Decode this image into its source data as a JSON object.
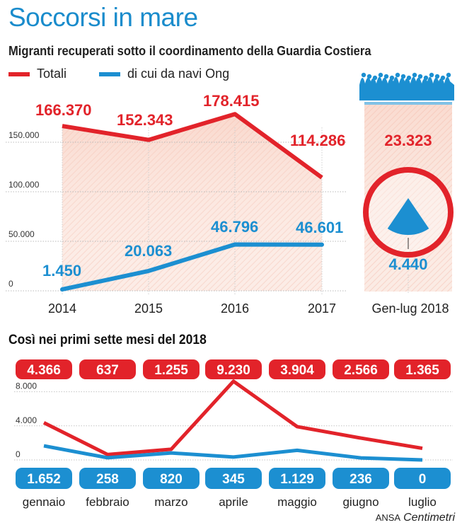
{
  "title": "Soccorsi in mare",
  "subtitle": "Migranti recuperati sotto il coordinamento della Guardia Costiera",
  "legend": {
    "total_label": "Totali",
    "ngo_label": "di cui da navi Ong"
  },
  "colors": {
    "red": "#e2232a",
    "blue": "#1c8fd1",
    "title": "#1a8ccc",
    "fill": "#f9d9cf"
  },
  "chart_data": [
    {
      "type": "line",
      "title": "Migranti recuperati sotto il coordinamento della Guardia Costiera",
      "categories": [
        "2014",
        "2015",
        "2016",
        "2017"
      ],
      "series": [
        {
          "name": "Totali",
          "values": [
            166370,
            152343,
            178415,
            114286
          ],
          "labels": [
            "166.370",
            "152.343",
            "178.415",
            "114.286"
          ]
        },
        {
          "name": "di cui da navi Ong",
          "values": [
            1450,
            20063,
            46796,
            46601
          ],
          "labels": [
            "1.450",
            "20.063",
            "46.796",
            "46.601"
          ]
        }
      ],
      "yticks": [
        0,
        50000,
        100000,
        150000
      ],
      "ytick_labels": [
        "0",
        "50.000",
        "100.000",
        "150.000"
      ],
      "ylim": [
        0,
        200000
      ],
      "grid": true
    },
    {
      "type": "pie",
      "title": "Gen-lug 2018",
      "category": "Gen-lug 2018",
      "total": 23323,
      "total_label": "23.323",
      "ngo": 4440,
      "ngo_label": "4.440"
    },
    {
      "type": "line",
      "title": "Così nei primi sette mesi del 2018",
      "categories": [
        "gennaio",
        "febbraio",
        "marzo",
        "aprile",
        "maggio",
        "giugno",
        "luglio"
      ],
      "series": [
        {
          "name": "Totali",
          "values": [
            4366,
            637,
            1255,
            9230,
            3904,
            2566,
            1365
          ],
          "labels": [
            "4.366",
            "637",
            "1.255",
            "9.230",
            "3.904",
            "2.566",
            "1.365"
          ]
        },
        {
          "name": "di cui da navi Ong",
          "values": [
            1652,
            258,
            820,
            345,
            1129,
            236,
            0
          ],
          "labels": [
            "1.652",
            "258",
            "820",
            "345",
            "1.129",
            "236",
            "0"
          ]
        }
      ],
      "yticks": [
        0,
        4000,
        8000
      ],
      "ytick_labels": [
        "0",
        "4.000",
        "8.000"
      ],
      "ylim": [
        0,
        10000
      ],
      "grid": true
    }
  ],
  "section2_title": "Così nei primi sette mesi del 2018",
  "credit": {
    "agency": "ANSA",
    "brand": "Centimetri"
  }
}
